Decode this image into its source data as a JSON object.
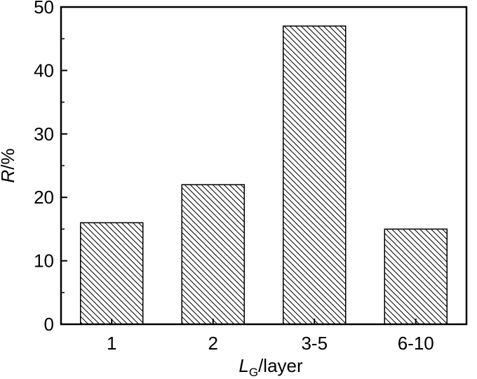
{
  "chart_data": {
    "type": "bar",
    "categories": [
      "1",
      "2",
      "3-5",
      "6-10"
    ],
    "values": [
      16,
      22,
      47,
      15
    ],
    "ylim": [
      0,
      50
    ],
    "yticks": [
      "0",
      "10",
      "20",
      "30",
      "40",
      "50"
    ],
    "xlabel": {
      "main": "L",
      "subscript": "G",
      "suffix": "/layer"
    },
    "ylabel": {
      "main": "R",
      "suffix": "/%"
    },
    "bar_fill": "hatched",
    "grid": false,
    "legend": "none",
    "colors": {
      "axis": "#000000",
      "bar_edge": "#000000",
      "hatch": "#000000",
      "background": "#ffffff"
    }
  }
}
